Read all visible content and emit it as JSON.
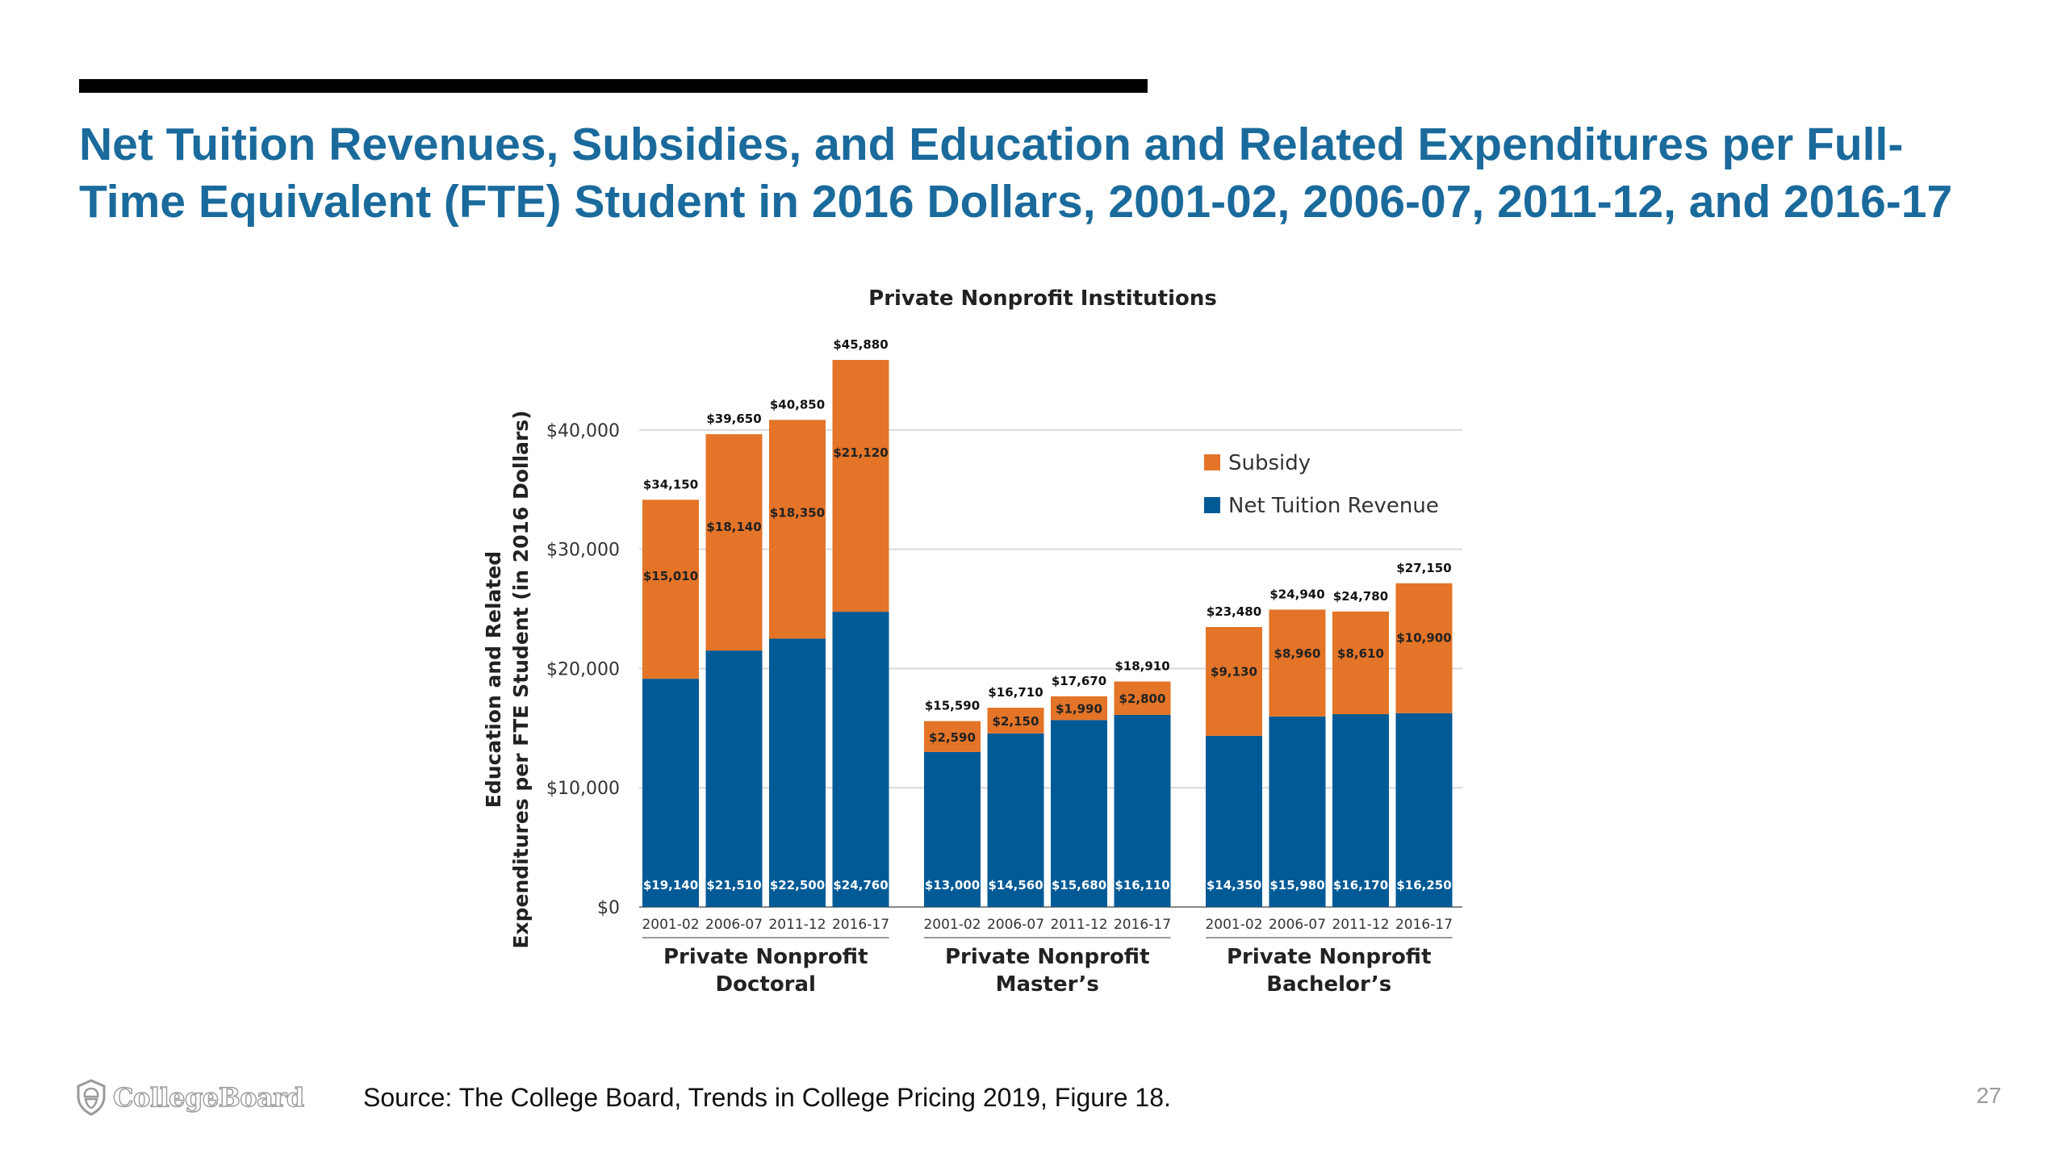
{
  "slide": {
    "title": "Net Tuition Revenues, Subsidies, and Education and Related Expenditures per Full-Time Equivalent (FTE) Student in 2016 Dollars, 2001-02, 2006-07, 2011-12, and 2016-17",
    "source": "Source: The College Board, Trends in College Pricing 2019, Figure 18.",
    "page_number": "27",
    "logo_text": "CollegeBoard",
    "logo_icon": "acorn-shield-icon"
  },
  "colors": {
    "title": "#1a6a9c",
    "net_tuition": "#005a96",
    "subsidy": "#e37428",
    "gridline": "#d9d9d9"
  },
  "chart_data": {
    "type": "bar",
    "stacked": true,
    "title": "Private Nonprofit Institutions",
    "ylabel": "Education and Related Expenditures per FTE Student (in 2016 Dollars)",
    "ylim": [
      0,
      45880
    ],
    "yticks": [
      0,
      10000,
      20000,
      30000,
      40000
    ],
    "ytick_labels": [
      "$0",
      "$10,000",
      "$20,000",
      "$30,000",
      "$40,000"
    ],
    "grid": true,
    "legend_position": "right",
    "categories": [
      "2001-02",
      "2006-07",
      "2011-12",
      "2016-17"
    ],
    "legend": [
      {
        "name": "Subsidy",
        "color": "#e37428"
      },
      {
        "name": "Net Tuition Revenue",
        "color": "#005a96"
      }
    ],
    "groups": [
      {
        "name_lines": [
          "Private Nonprofit",
          "Doctoral"
        ],
        "bars": [
          {
            "year": "2001-02",
            "net_tuition": 19140,
            "subsidy": 15010,
            "total": 34150,
            "net_label": "$19,140",
            "subsidy_label": "$15,010",
            "total_label": "$34,150"
          },
          {
            "year": "2006-07",
            "net_tuition": 21510,
            "subsidy": 18140,
            "total": 39650,
            "net_label": "$21,510",
            "subsidy_label": "$18,140",
            "total_label": "$39,650"
          },
          {
            "year": "2011-12",
            "net_tuition": 22500,
            "subsidy": 18350,
            "total": 40850,
            "net_label": "$22,500",
            "subsidy_label": "$18,350",
            "total_label": "$40,850"
          },
          {
            "year": "2016-17",
            "net_tuition": 24760,
            "subsidy": 21120,
            "total": 45880,
            "net_label": "$24,760",
            "subsidy_label": "$21,120",
            "total_label": "$45,880"
          }
        ]
      },
      {
        "name_lines": [
          "Private Nonprofit",
          "Master’s"
        ],
        "bars": [
          {
            "year": "2001-02",
            "net_tuition": 13000,
            "subsidy": 2590,
            "total": 15590,
            "net_label": "$13,000",
            "subsidy_label": "$2,590",
            "total_label": "$15,590"
          },
          {
            "year": "2006-07",
            "net_tuition": 14560,
            "subsidy": 2150,
            "total": 16710,
            "net_label": "$14,560",
            "subsidy_label": "$2,150",
            "total_label": "$16,710"
          },
          {
            "year": "2011-12",
            "net_tuition": 15680,
            "subsidy": 1990,
            "total": 17670,
            "net_label": "$15,680",
            "subsidy_label": "$1,990",
            "total_label": "$17,670"
          },
          {
            "year": "2016-17",
            "net_tuition": 16110,
            "subsidy": 2800,
            "total": 18910,
            "net_label": "$16,110",
            "subsidy_label": "$2,800",
            "total_label": "$18,910"
          }
        ]
      },
      {
        "name_lines": [
          "Private Nonprofit",
          "Bachelor’s"
        ],
        "bars": [
          {
            "year": "2001-02",
            "net_tuition": 14350,
            "subsidy": 9130,
            "total": 23480,
            "net_label": "$14,350",
            "subsidy_label": "$9,130",
            "total_label": "$23,480"
          },
          {
            "year": "2006-07",
            "net_tuition": 15980,
            "subsidy": 8960,
            "total": 24940,
            "net_label": "$15,980",
            "subsidy_label": "$8,960",
            "total_label": "$24,940"
          },
          {
            "year": "2011-12",
            "net_tuition": 16170,
            "subsidy": 8610,
            "total": 24780,
            "net_label": "$16,170",
            "subsidy_label": "$8,610",
            "total_label": "$24,780"
          },
          {
            "year": "2016-17",
            "net_tuition": 16250,
            "subsidy": 10900,
            "total": 27150,
            "net_label": "$16,250",
            "subsidy_label": "$10,900",
            "total_label": "$27,150"
          }
        ]
      }
    ]
  }
}
